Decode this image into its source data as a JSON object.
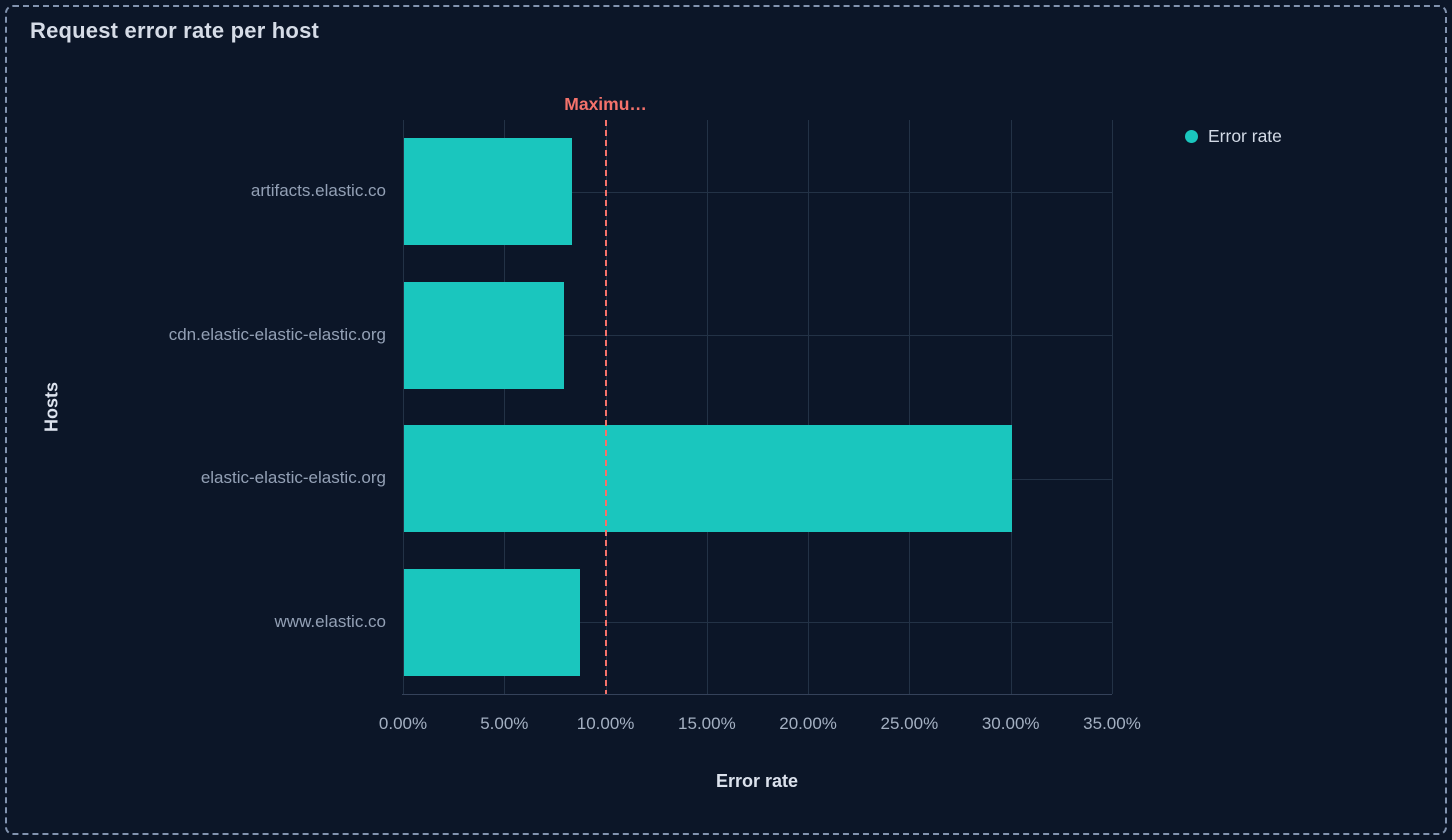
{
  "panel": {
    "title": "Request error rate per host"
  },
  "legend": {
    "items": [
      {
        "label": "Error rate",
        "color": "#1AC6BE"
      }
    ]
  },
  "chart_data": {
    "type": "bar",
    "orientation": "horizontal",
    "title": "Request error rate per host",
    "series_name": "Error rate",
    "categories": [
      "artifacts.elastic.co",
      "cdn.elastic-elastic-elastic.org",
      "elastic-elastic-elastic.org",
      "www.elastic.co"
    ],
    "values": [
      8.3,
      7.9,
      30.0,
      8.7
    ],
    "value_unit": "%",
    "xlabel": "Error rate",
    "ylabel": "Hosts",
    "xlim": [
      0,
      35
    ],
    "xticks": [
      0,
      5,
      10,
      15,
      20,
      25,
      30,
      35
    ],
    "xtick_labels": [
      "0.00%",
      "5.00%",
      "10.00%",
      "15.00%",
      "20.00%",
      "25.00%",
      "30.00%",
      "35.00%"
    ],
    "grid": true,
    "legend_position": "top-right",
    "bar_color": "#1AC6BE",
    "annotation": {
      "label": "Maximu…",
      "label_full_hint": "Maximum",
      "x": 10,
      "line_style": "dashed",
      "color": "#F4726B"
    }
  },
  "colors": {
    "background": "#0C1628",
    "panel_border": "#8293AF",
    "gridline": "#233246",
    "axis_line": "#35425A",
    "title_text": "#D6DCE7",
    "axis_title_text": "#DCE2ED",
    "category_label_text": "#93A0B5",
    "tick_label_text": "#A4B0C2",
    "legend_text": "#D3DAE6"
  }
}
